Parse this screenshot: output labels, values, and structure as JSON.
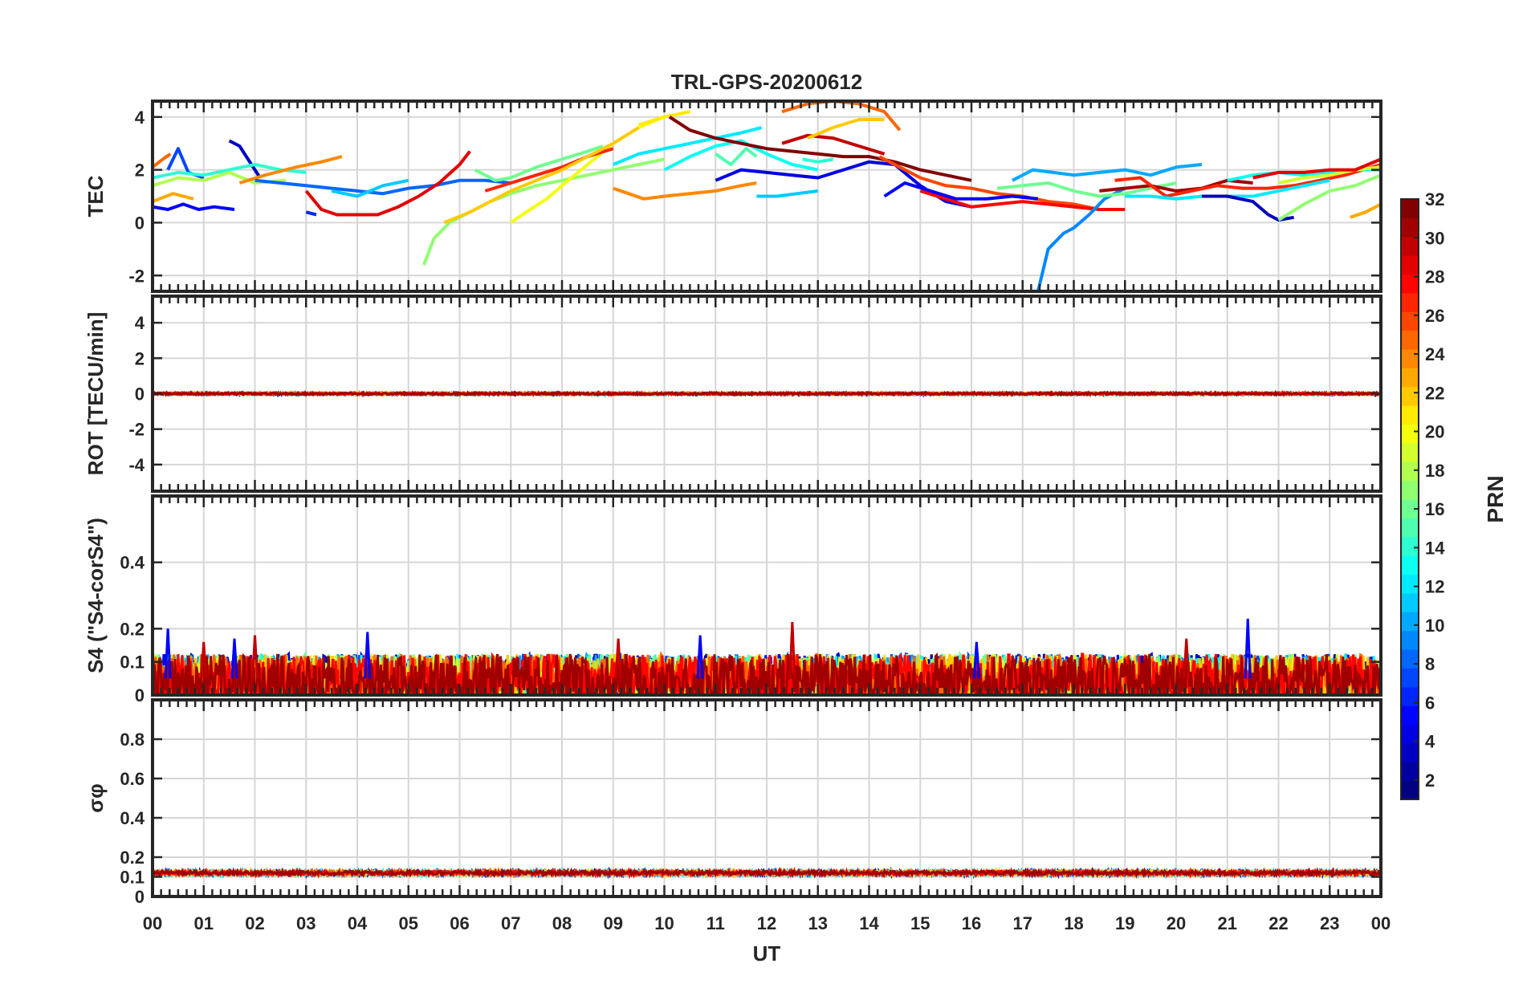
{
  "chart_data": {
    "type": "line",
    "title": "TRL-GPS-20200612",
    "xlabel": "UT",
    "x_tick_labels": [
      "00",
      "01",
      "02",
      "03",
      "04",
      "05",
      "06",
      "07",
      "08",
      "09",
      "10",
      "11",
      "12",
      "13",
      "14",
      "15",
      "16",
      "17",
      "18",
      "19",
      "20",
      "21",
      "22",
      "23",
      "00"
    ],
    "xlim": [
      0,
      24
    ],
    "panels": [
      {
        "id": "tec",
        "ylabel": "TEC",
        "ylim": [
          -2.6,
          4.6
        ],
        "yticks": [
          "-2",
          "0",
          "2",
          "4"
        ],
        "series": [
          {
            "prn": 5,
            "x": [
              0,
              0.3,
              0.6,
              0.9,
              1.2,
              1.6
            ],
            "y": [
              0.6,
              0.5,
              0.7,
              0.5,
              0.6,
              0.5
            ]
          },
          {
            "prn": 7,
            "x": [
              0.3,
              0.5,
              0.7,
              1.0
            ],
            "y": [
              2.0,
              2.8,
              1.9,
              1.7
            ]
          },
          {
            "prn": 3,
            "x": [
              1.5,
              1.7,
              1.9,
              2.1
            ],
            "y": [
              3.1,
              2.9,
              2.3,
              1.7
            ]
          },
          {
            "prn": 14,
            "x": [
              0,
              0.5,
              1.0,
              1.5,
              2.0,
              2.5,
              3.0
            ],
            "y": [
              1.7,
              1.9,
              1.8,
              2.0,
              2.2,
              2.0,
              1.9
            ]
          },
          {
            "prn": 18,
            "x": [
              0,
              0.5,
              1.0,
              1.5,
              2.0,
              2.6
            ],
            "y": [
              1.4,
              1.7,
              1.6,
              1.9,
              1.5,
              1.6
            ]
          },
          {
            "prn": 23,
            "x": [
              0,
              0.4,
              0.8
            ],
            "y": [
              0.8,
              1.1,
              0.9
            ]
          },
          {
            "prn": 25,
            "x": [
              0,
              0.2,
              0.35
            ],
            "y": [
              2.1,
              2.4,
              2.6
            ]
          },
          {
            "prn": 24,
            "x": [
              1.7,
              2.2,
              2.8,
              3.3,
              3.7
            ],
            "y": [
              1.5,
              1.8,
              2.1,
              2.3,
              2.5
            ]
          },
          {
            "prn": 8,
            "x": [
              2.0,
              2.5,
              3.0,
              3.5,
              4.0,
              4.5,
              5.0,
              5.5,
              6.0,
              6.5,
              7.0
            ],
            "y": [
              1.6,
              1.5,
              1.4,
              1.3,
              1.2,
              1.1,
              1.3,
              1.4,
              1.6,
              1.6,
              1.5
            ]
          },
          {
            "prn": 29,
            "x": [
              3.0,
              3.3,
              3.6,
              4.0,
              4.4,
              4.8,
              5.2,
              5.6,
              6.0,
              6.2
            ],
            "y": [
              1.2,
              0.5,
              0.3,
              0.3,
              0.3,
              0.6,
              1.0,
              1.5,
              2.2,
              2.7
            ]
          },
          {
            "prn": 6,
            "x": [
              3.0,
              3.2
            ],
            "y": [
              0.4,
              0.3
            ]
          },
          {
            "prn": 11,
            "x": [
              3.5,
              4.0,
              4.5,
              5.0
            ],
            "y": [
              1.2,
              1.0,
              1.4,
              1.6
            ]
          },
          {
            "prn": 17,
            "x": [
              5.3,
              5.5,
              5.8,
              6.2,
              6.6,
              7.0,
              7.5,
              8.0,
              8.5,
              9.0,
              9.5,
              10.0
            ],
            "y": [
              -1.6,
              -0.6,
              0.0,
              0.4,
              0.8,
              1.1,
              1.4,
              1.6,
              1.8,
              2.0,
              2.2,
              2.4
            ]
          },
          {
            "prn": 20,
            "x": [
              7.0,
              7.3,
              7.7,
              8.0,
              8.5,
              9.0,
              9.5,
              10.0,
              10.5
            ],
            "y": [
              0.0,
              0.4,
              0.9,
              1.4,
              2.2,
              3.0,
              3.6,
              4.0,
              4.2
            ]
          },
          {
            "prn": 16,
            "x": [
              6.3,
              6.7,
              7.0,
              7.5,
              8.0,
              8.5,
              8.8
            ],
            "y": [
              2.0,
              1.6,
              1.7,
              2.1,
              2.4,
              2.7,
              2.9
            ]
          },
          {
            "prn": 27,
            "x": [
              6.5,
              7.0,
              7.5,
              8.0,
              8.5,
              9.0
            ],
            "y": [
              1.2,
              1.5,
              1.8,
              2.1,
              2.5,
              2.8
            ]
          },
          {
            "prn": 22,
            "x": [
              5.7,
              6.2,
              6.6,
              7.0,
              7.5,
              8.0,
              8.5,
              9.0,
              9.5
            ],
            "y": [
              0.0,
              0.4,
              0.8,
              1.2,
              1.6,
              2.0,
              2.5,
              3.0,
              3.6
            ]
          },
          {
            "prn": 24,
            "x": [
              9.0,
              9.3,
              9.6,
              10.0,
              10.5,
              11.0,
              11.5,
              11.8
            ],
            "y": [
              1.3,
              1.1,
              0.9,
              1.0,
              1.1,
              1.2,
              1.4,
              1.5
            ]
          },
          {
            "prn": 21,
            "x": [
              9.5,
              10.0,
              10.5
            ],
            "y": [
              3.7,
              4.0,
              4.2
            ]
          },
          {
            "prn": 12,
            "x": [
              9.0,
              9.5,
              10.0,
              10.5,
              11.0,
              11.5,
              11.9
            ],
            "y": [
              2.2,
              2.6,
              2.8,
              3.0,
              3.2,
              3.4,
              3.6
            ]
          },
          {
            "prn": 13,
            "x": [
              10.0,
              10.5,
              11.0,
              11.5,
              12.0,
              12.5,
              13.0
            ],
            "y": [
              2.0,
              2.5,
              2.9,
              3.1,
              2.6,
              2.2,
              2.0
            ]
          },
          {
            "prn": 4,
            "x": [
              11.0,
              11.5,
              12.0,
              12.5,
              13.0,
              13.5,
              14.0,
              14.5,
              15.0,
              15.5,
              16.0
            ],
            "y": [
              1.6,
              2.0,
              1.9,
              1.8,
              1.7,
              2.0,
              2.3,
              2.2,
              1.4,
              0.8,
              0.6
            ]
          },
          {
            "prn": 32,
            "x": [
              10.1,
              10.5,
              11.0,
              11.5,
              12.0,
              12.5,
              13.0,
              13.5,
              14.0,
              14.5,
              15.0,
              15.5,
              16.0
            ],
            "y": [
              4.0,
              3.5,
              3.2,
              3.0,
              2.8,
              2.7,
              2.6,
              2.5,
              2.5,
              2.3,
              2.0,
              1.8,
              1.6
            ]
          },
          {
            "prn": 30,
            "x": [
              12.3,
              12.8,
              13.3,
              13.8,
              14.3
            ],
            "y": [
              3.0,
              3.3,
              3.2,
              2.9,
              2.6
            ]
          },
          {
            "prn": 25,
            "x": [
              12.3,
              12.8,
              13.3,
              13.8,
              14.3,
              14.6
            ],
            "y": [
              4.2,
              4.5,
              4.6,
              4.5,
              4.2,
              3.5
            ]
          },
          {
            "prn": 22,
            "x": [
              12.8,
              13.3,
              13.8,
              14.3
            ],
            "y": [
              3.2,
              3.6,
              3.9,
              3.9
            ]
          },
          {
            "prn": 11,
            "x": [
              11.8,
              12.2,
              12.6,
              13.0
            ],
            "y": [
              1.0,
              1.0,
              1.1,
              1.2
            ]
          },
          {
            "prn": 14,
            "x": [
              12.7,
              13.0,
              13.3
            ],
            "y": [
              2.4,
              2.3,
              2.4
            ]
          },
          {
            "prn": 15,
            "x": [
              11.0,
              11.3,
              11.6,
              11.8
            ],
            "y": [
              2.6,
              2.2,
              2.8,
              2.5
            ]
          },
          {
            "prn": 26,
            "x": [
              14.2,
              14.6,
              15.0,
              15.5,
              16.0,
              16.5,
              17.0,
              17.5,
              18.0,
              18.5
            ],
            "y": [
              2.5,
              2.1,
              1.7,
              1.4,
              1.3,
              1.1,
              1.0,
              0.8,
              0.7,
              0.5
            ]
          },
          {
            "prn": 28,
            "x": [
              15.0,
              15.5,
              16.0,
              16.5,
              17.0,
              17.5,
              18.0,
              18.5,
              19.0
            ],
            "y": [
              1.2,
              0.9,
              0.6,
              0.7,
              0.8,
              0.7,
              0.6,
              0.5,
              0.5
            ]
          },
          {
            "prn": 5,
            "x": [
              14.3,
              14.7,
              15.2,
              15.7,
              16.3,
              16.8,
              17.3
            ],
            "y": [
              1.0,
              1.5,
              1.2,
              0.9,
              0.9,
              1.0,
              0.9
            ]
          },
          {
            "prn": 10,
            "x": [
              16.8,
              17.2,
              17.6,
              18.0,
              18.5,
              19.0,
              19.5,
              20.0,
              20.5
            ],
            "y": [
              1.6,
              2.0,
              1.9,
              1.8,
              1.9,
              2.0,
              1.8,
              2.1,
              2.2
            ]
          },
          {
            "prn": 9,
            "x": [
              17.3,
              17.5,
              17.8,
              18.0,
              18.3,
              18.6,
              19.0
            ],
            "y": [
              -2.6,
              -1.0,
              -0.4,
              -0.2,
              0.3,
              0.9,
              1.3
            ]
          },
          {
            "prn": 16,
            "x": [
              16.5,
              17.0,
              17.5,
              18.0,
              18.5,
              19.0,
              19.5,
              20.0
            ],
            "y": [
              1.3,
              1.4,
              1.5,
              1.2,
              1.0,
              1.1,
              1.3,
              1.5
            ]
          },
          {
            "prn": 31,
            "x": [
              18.5,
              19.0,
              19.5,
              20.0,
              20.5,
              21.0,
              21.5
            ],
            "y": [
              1.2,
              1.3,
              1.4,
              1.2,
              1.3,
              1.6,
              1.5
            ]
          },
          {
            "prn": 27,
            "x": [
              18.8,
              19.3,
              19.8,
              20.3,
              20.8,
              21.3,
              21.8,
              22.3,
              22.8,
              23.3,
              24.0
            ],
            "y": [
              1.6,
              1.7,
              1.0,
              1.2,
              1.4,
              1.3,
              1.3,
              1.4,
              1.6,
              1.8,
              2.2
            ]
          },
          {
            "prn": 12,
            "x": [
              19.0,
              19.5,
              20.0,
              20.5,
              21.0,
              21.5,
              22.0,
              22.5,
              23.0
            ],
            "y": [
              1.0,
              1.0,
              0.9,
              1.0,
              1.0,
              1.0,
              1.2,
              1.4,
              1.6
            ]
          },
          {
            "prn": 3,
            "x": [
              20.5,
              21.0,
              21.5,
              21.8,
              22.0,
              22.3
            ],
            "y": [
              1.0,
              1.0,
              0.8,
              0.3,
              0.1,
              0.2
            ]
          },
          {
            "prn": 13,
            "x": [
              21.0,
              21.5,
              22.0,
              22.5,
              23.0,
              23.5,
              24.0
            ],
            "y": [
              1.6,
              1.8,
              1.9,
              1.8,
              1.9,
              2.0,
              2.0
            ]
          },
          {
            "prn": 19,
            "x": [
              22.0,
              22.5,
              23.0,
              23.5,
              24.0
            ],
            "y": [
              1.5,
              1.7,
              1.8,
              2.0,
              2.1
            ]
          },
          {
            "prn": 17,
            "x": [
              22.0,
              22.5,
              23.0,
              23.5,
              24.0
            ],
            "y": [
              0.1,
              0.7,
              1.2,
              1.4,
              1.8
            ]
          },
          {
            "prn": 23,
            "x": [
              23.4,
              23.7,
              24.0
            ],
            "y": [
              0.2,
              0.4,
              0.7
            ]
          },
          {
            "prn": 29,
            "x": [
              21.5,
              22.0,
              22.5,
              23.0,
              23.5,
              24.0
            ],
            "y": [
              1.7,
              1.9,
              1.9,
              2.0,
              2.0,
              2.4
            ]
          }
        ]
      },
      {
        "id": "rot",
        "ylabel": "ROT [TECU/min]",
        "ylim": [
          -5.5,
          5.5
        ],
        "yticks": [
          "-4",
          "-2",
          "0",
          "2",
          "4"
        ],
        "baseline": 0.0,
        "noise_amplitude": 0.12
      },
      {
        "id": "s4",
        "ylabel": "S4 (\"S4-corS4\")",
        "ylim": [
          0,
          0.6
        ],
        "yticks": [
          "0",
          "0.1",
          "0.2",
          "0.4"
        ],
        "baseline": 0.04,
        "noise_amplitude": 0.12,
        "spikes": [
          {
            "x": 0.3,
            "y": 0.2
          },
          {
            "x": 1.0,
            "y": 0.16
          },
          {
            "x": 1.6,
            "y": 0.17
          },
          {
            "x": 2.0,
            "y": 0.18
          },
          {
            "x": 4.2,
            "y": 0.19
          },
          {
            "x": 9.1,
            "y": 0.17
          },
          {
            "x": 10.7,
            "y": 0.18
          },
          {
            "x": 12.5,
            "y": 0.22
          },
          {
            "x": 16.1,
            "y": 0.16
          },
          {
            "x": 20.2,
            "y": 0.17
          },
          {
            "x": 21.4,
            "y": 0.23
          }
        ]
      },
      {
        "id": "sigma",
        "ylabel": "σφ",
        "ylim": [
          0,
          1.0
        ],
        "yticks": [
          "0",
          "0.1",
          "0.2",
          "0.4",
          "0.6",
          "0.8"
        ],
        "baseline": 0.12,
        "noise_amplitude": 0.02
      }
    ],
    "colorbar": {
      "label": "PRN",
      "range": [
        1,
        32
      ],
      "ticks": [
        "2",
        "4",
        "6",
        "8",
        "10",
        "12",
        "14",
        "16",
        "18",
        "20",
        "22",
        "24",
        "26",
        "28",
        "30",
        "32"
      ],
      "colormap": "jet"
    }
  }
}
